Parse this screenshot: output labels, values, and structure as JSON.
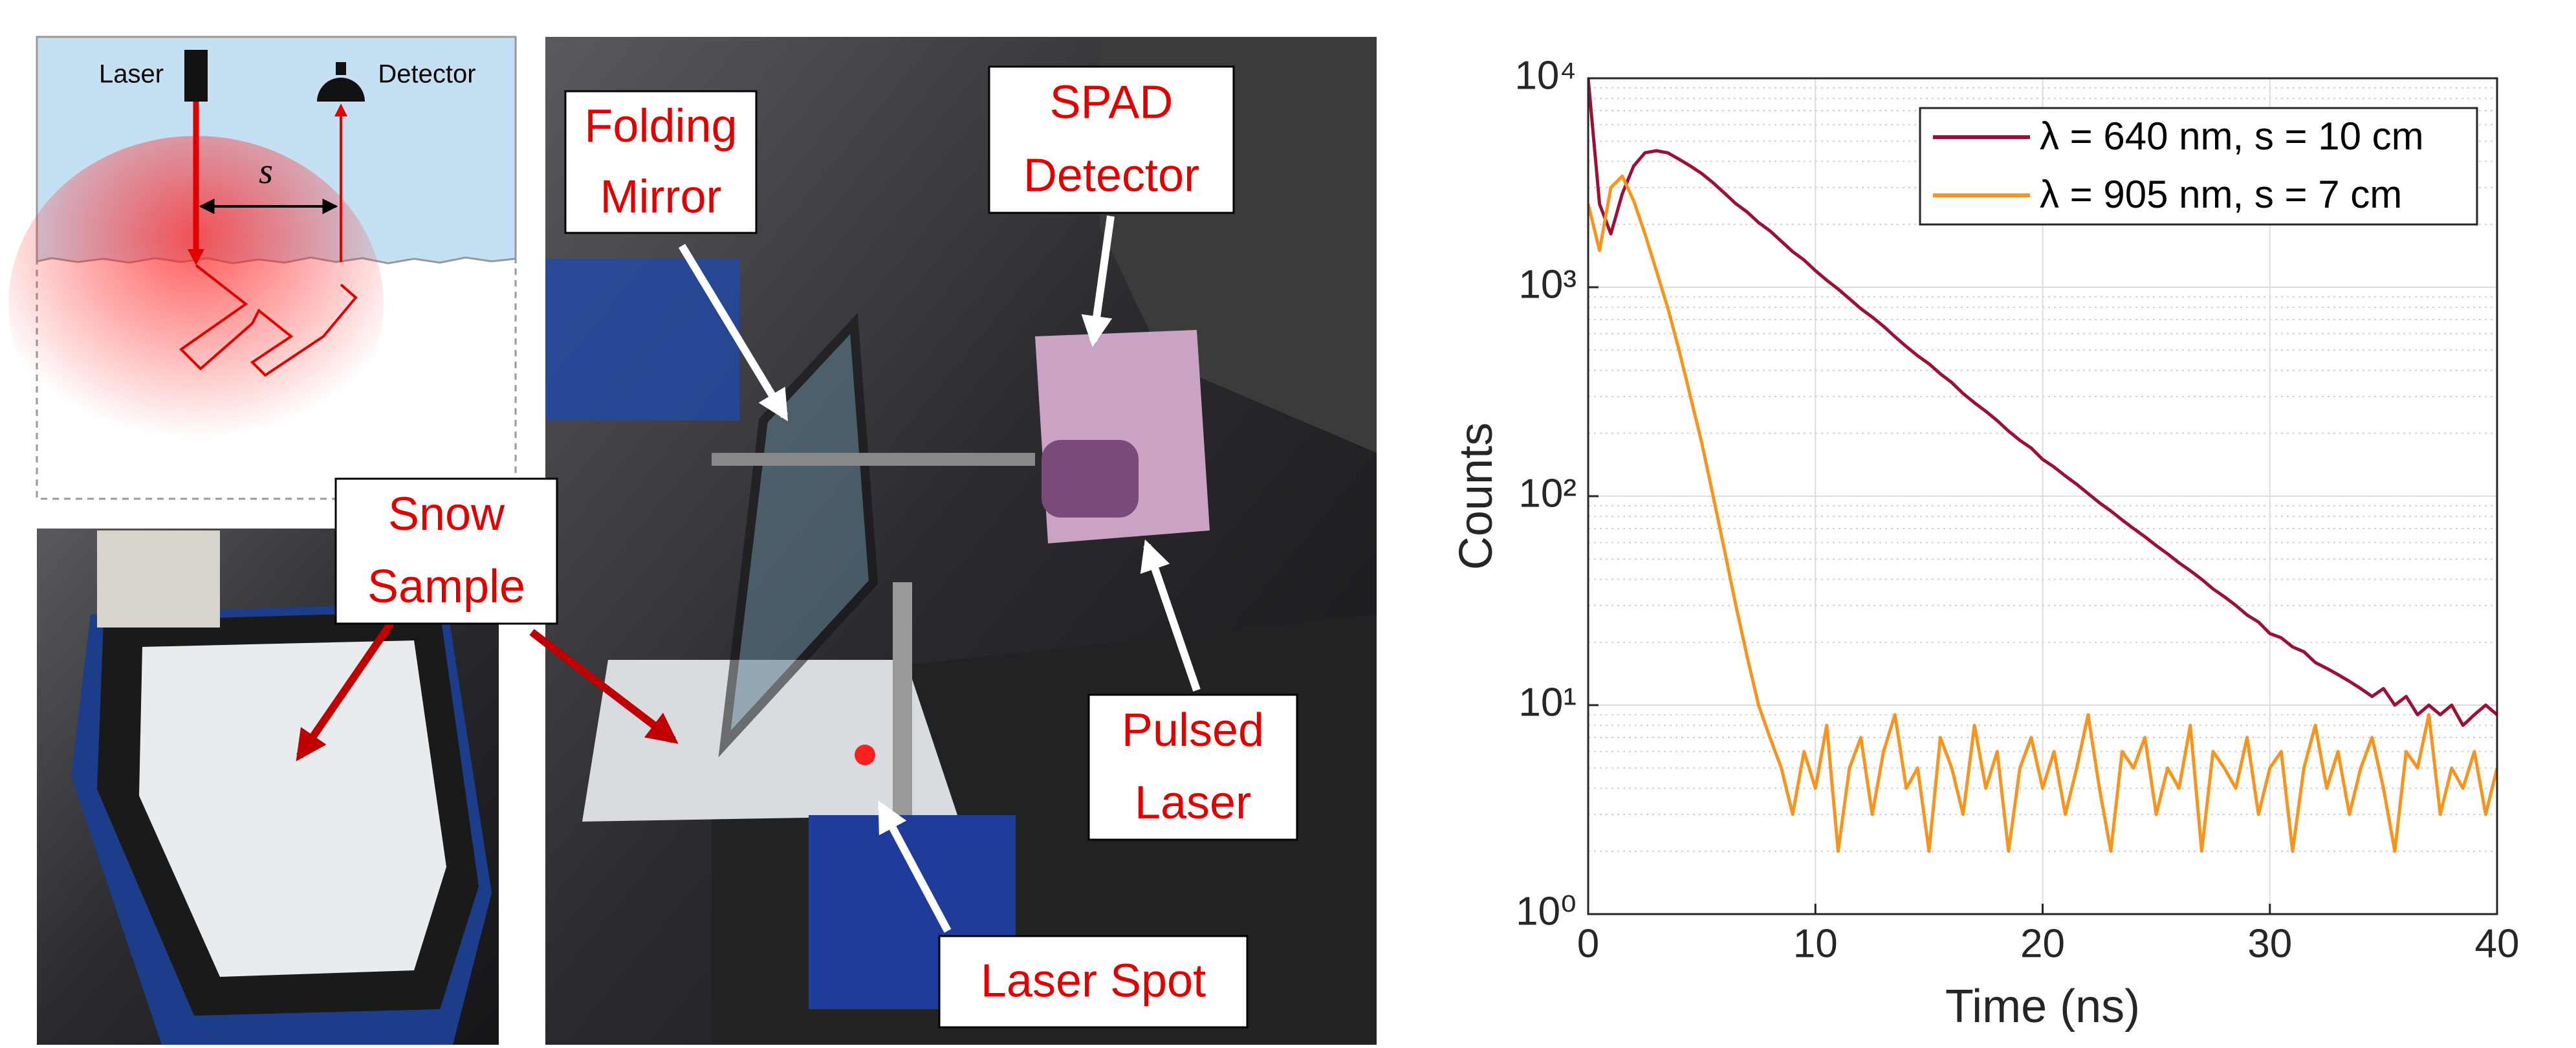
{
  "diagram": {
    "laser": "Laser",
    "detector": "Detector",
    "separation": "s"
  },
  "photos": {
    "folding_mirror": [
      "Folding",
      "Mirror"
    ],
    "spad_detector": [
      "SPAD",
      "Detector"
    ],
    "snow_sample": [
      "Snow",
      "Sample"
    ],
    "pulsed_laser": [
      "Pulsed",
      "Laser"
    ],
    "laser_spot": [
      "Laser Spot"
    ]
  },
  "chart_data": {
    "type": "line",
    "x_label": "Time (ns)",
    "y_label": "Counts",
    "xlim": [
      0,
      40
    ],
    "xticks": [
      0,
      10,
      20,
      30,
      40
    ],
    "ylim": [
      1,
      10000
    ],
    "yscale": "log",
    "yticks": [
      {
        "value": 1,
        "label": "10⁰"
      },
      {
        "value": 10,
        "label": "10¹"
      },
      {
        "value": 100,
        "label": "10²"
      },
      {
        "value": 1000,
        "label": "10³"
      },
      {
        "value": 10000,
        "label": "10⁴"
      }
    ],
    "grid": true,
    "minor_grid": true,
    "legend": "upper right",
    "x": [
      0,
      0.5,
      1,
      1.5,
      2,
      2.5,
      3,
      3.5,
      4,
      4.5,
      5,
      5.5,
      6,
      6.5,
      7,
      7.5,
      8,
      8.5,
      9,
      9.5,
      10,
      10.5,
      11,
      11.5,
      12,
      12.5,
      13,
      13.5,
      14,
      14.5,
      15,
      15.5,
      16,
      16.5,
      17,
      17.5,
      18,
      18.5,
      19,
      19.5,
      20,
      20.5,
      21,
      21.5,
      22,
      22.5,
      23,
      23.5,
      24,
      24.5,
      25,
      25.5,
      26,
      26.5,
      27,
      27.5,
      28,
      28.5,
      29,
      29.5,
      30,
      30.5,
      31,
      31.5,
      32,
      32.5,
      33,
      33.5,
      34,
      34.5,
      35,
      35.5,
      36,
      36.5,
      37,
      37.5,
      38,
      38.5,
      39,
      39.5,
      40
    ],
    "series": [
      {
        "name": "λ = 640 nm, s = 10 cm",
        "color": "#9b1035",
        "values": [
          10000,
          2500,
          1800,
          2800,
          3800,
          4400,
          4500,
          4400,
          4100,
          3800,
          3500,
          3160,
          2820,
          2510,
          2290,
          2040,
          1860,
          1660,
          1480,
          1350,
          1200,
          1080,
          980,
          880,
          790,
          720,
          650,
          580,
          520,
          470,
          430,
          385,
          350,
          310,
          280,
          255,
          230,
          205,
          185,
          170,
          150,
          138,
          125,
          114,
          103,
          93,
          85,
          77,
          70,
          64,
          58,
          53,
          48,
          44,
          40,
          36,
          33,
          30,
          27,
          25,
          22,
          21,
          19,
          18,
          16,
          15,
          14,
          13,
          12,
          11,
          12,
          10,
          11,
          9,
          10,
          9,
          10,
          8,
          9,
          10,
          9
        ]
      },
      {
        "name": "λ = 905 nm, s = 7 cm",
        "color": "#f7941d",
        "values": [
          2500,
          1500,
          3000,
          3400,
          2600,
          1800,
          1200,
          800,
          500,
          300,
          180,
          100,
          55,
          30,
          17,
          10,
          7,
          5,
          3,
          6,
          4,
          8,
          2,
          5,
          7,
          3,
          6,
          9,
          4,
          5,
          2,
          7,
          5,
          3,
          8,
          4,
          6,
          2,
          5,
          7,
          4,
          6,
          3,
          5,
          9,
          4,
          2,
          6,
          5,
          7,
          3,
          5,
          4,
          8,
          2,
          6,
          5,
          4,
          7,
          3,
          5,
          6,
          2,
          5,
          8,
          4,
          6,
          3,
          5,
          7,
          4,
          2,
          6,
          5,
          9,
          3,
          5,
          4,
          6,
          3,
          5
        ]
      }
    ]
  }
}
